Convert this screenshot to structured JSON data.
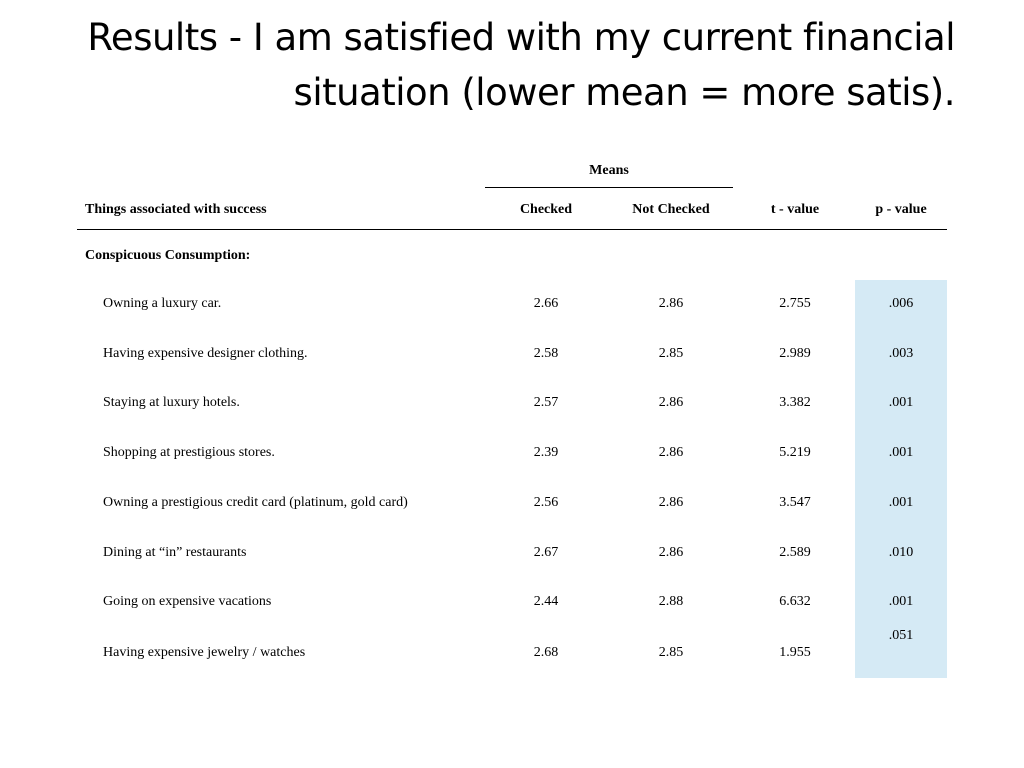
{
  "title": {
    "line1": "Results - I am satisfied with my current financial",
    "line2": "situation (lower mean = more satis)."
  },
  "table": {
    "means_label": "Means",
    "headers": {
      "name": "Things associated with success",
      "checked": "Checked",
      "not_checked": "Not Checked",
      "t_value": "t - value",
      "p_value": "p - value"
    },
    "section": "Conspicuous Consumption:",
    "highlight_color": "#d5eaf5",
    "rows": [
      {
        "name": "Owning a luxury car.",
        "checked": "2.66",
        "not_checked": "2.86",
        "t": "2.755",
        "p": ".006"
      },
      {
        "name": "Having expensive designer clothing.",
        "checked": "2.58",
        "not_checked": "2.85",
        "t": "2.989",
        "p": ".003"
      },
      {
        "name": "Staying at luxury hotels.",
        "checked": "2.57",
        "not_checked": "2.86",
        "t": "3.382",
        "p": ".001"
      },
      {
        "name": "Shopping at prestigious stores.",
        "checked": "2.39",
        "not_checked": "2.86",
        "t": "5.219",
        "p": ".001"
      },
      {
        "name": "Owning a prestigious credit card (platinum, gold card)",
        "checked": "2.56",
        "not_checked": "2.86",
        "t": "3.547",
        "p": ".001"
      },
      {
        "name": "Dining at “in” restaurants",
        "checked": "2.67",
        "not_checked": "2.86",
        "t": "2.589",
        "p": ".010"
      },
      {
        "name": "Going on expensive vacations",
        "checked": "2.44",
        "not_checked": "2.88",
        "t": "6.632",
        "p": ".001"
      },
      {
        "name": "Having expensive jewelry / watches",
        "checked": "2.68",
        "not_checked": "2.85",
        "t": "1.955",
        "p": ".051"
      }
    ]
  }
}
